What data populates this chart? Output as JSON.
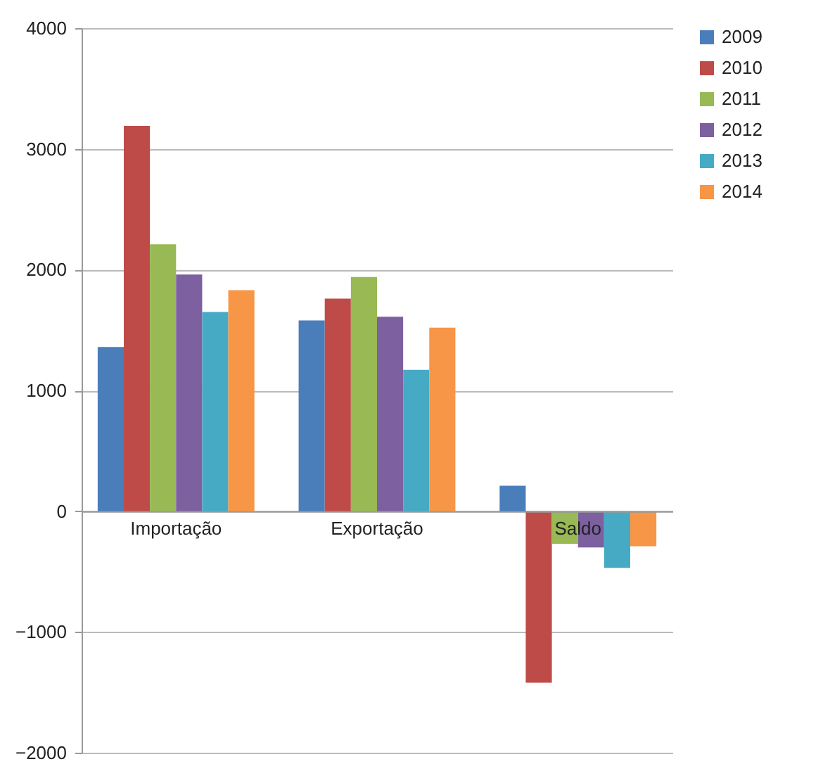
{
  "chart_data": {
    "type": "bar",
    "categories": [
      "Importação",
      "Exportação",
      "Saldo"
    ],
    "series": [
      {
        "name": "2009",
        "color": "#4a7ebb",
        "values": [
          1360,
          1580,
          210
        ]
      },
      {
        "name": "2010",
        "color": "#be4b48",
        "values": [
          3190,
          1760,
          -1420
        ]
      },
      {
        "name": "2011",
        "color": "#98b954",
        "values": [
          2210,
          1940,
          -270
        ]
      },
      {
        "name": "2012",
        "color": "#7d60a0",
        "values": [
          1960,
          1610,
          -300
        ]
      },
      {
        "name": "2013",
        "color": "#46aac5",
        "values": [
          1650,
          1170,
          -470
        ]
      },
      {
        "name": "2014",
        "color": "#f79646",
        "values": [
          1830,
          1520,
          -290
        ]
      }
    ],
    "ylim": [
      -2000,
      4000
    ],
    "yticks": [
      -2000,
      -1000,
      0,
      1000,
      2000,
      3000,
      4000
    ],
    "grid": "y",
    "legend": "right"
  }
}
